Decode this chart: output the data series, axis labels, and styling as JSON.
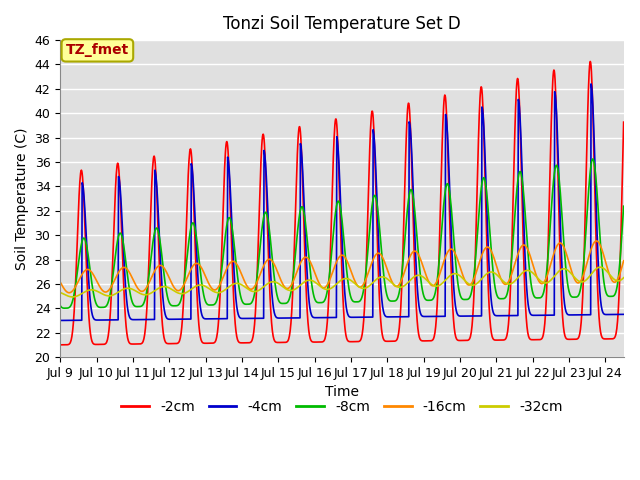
{
  "title": "Tonzi Soil Temperature Set D",
  "xlabel": "Time",
  "ylabel": "Soil Temperature (C)",
  "label_annotation": "TZ_fmet",
  "ylim": [
    20,
    46
  ],
  "yticks": [
    20,
    22,
    24,
    26,
    28,
    30,
    32,
    34,
    36,
    38,
    40,
    42,
    44,
    46
  ],
  "x_tick_labels": [
    "Jul 9",
    "Jul 10",
    "Jul 11",
    "Jul 12",
    "Jul 13",
    "Jul 14",
    "Jul 15",
    "Jul 16",
    "Jul 17",
    "Jul 18",
    "Jul 19",
    "Jul 20",
    "Jul 21",
    "Jul 22",
    "Jul 23",
    "Jul 24"
  ],
  "series_colors": [
    "#ff0000",
    "#0000cc",
    "#00bb00",
    "#ff8800",
    "#cccc00"
  ],
  "series_labels": [
    "-2cm",
    "-4cm",
    "-8cm",
    "-16cm",
    "-32cm"
  ],
  "bg_color": "#e0e0e0",
  "annotation_bg": "#ffff99",
  "annotation_fg": "#aa0000",
  "annotation_border": "#aaa800",
  "title_fontsize": 12,
  "axis_fontsize": 10,
  "legend_fontsize": 10,
  "tick_fontsize": 9,
  "linewidth": 1.2
}
